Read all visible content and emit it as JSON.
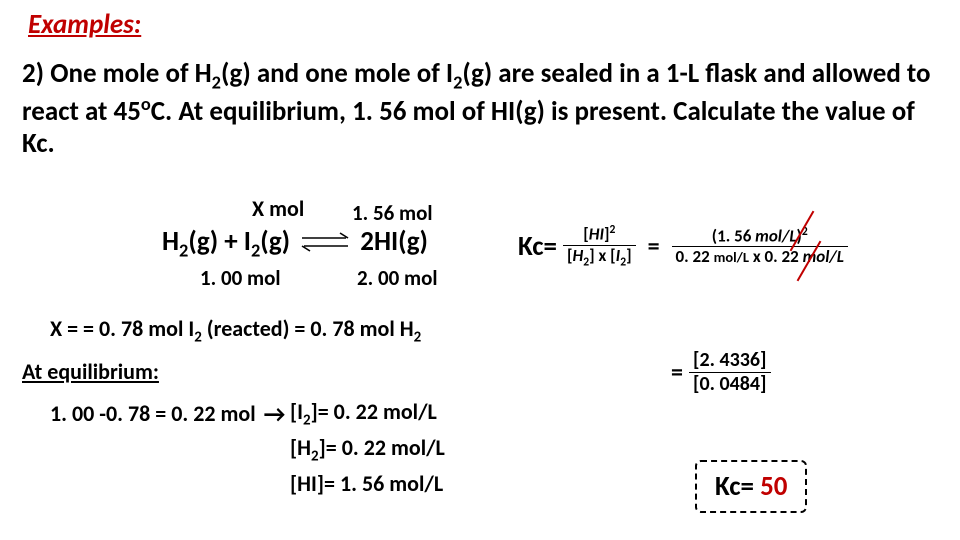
{
  "title": "Examples:",
  "problem_html": "2) One mole of H<span class='sub'>2</span>(g) and one mole of I<span class='sub'>2</span>(g) are sealed in a 1-L flask and allowed to react at 45<span class='sup'>o</span>C. At equilibrium, 1. 56 mol of HI(g) is present. Calculate the value of Kc.",
  "reaction": {
    "x_label": "X mol",
    "hi_initial": "1. 56 mol",
    "lhs_html": "H<span class='sub'>2</span>(g) + I<span class='sub'>2</span>(g)",
    "rhs_html": "2HI(g)",
    "h2_mol": "1. 00 mol",
    "hi_mol": "2. 00 mol"
  },
  "xline_html": "X = = 0. 78 mol I<span class='sub'>2</span> (reacted)  = 0. 78 mol H<span class='sub'>2</span>",
  "ateq_label": "At equilibrium:",
  "calcline_html": "1. 00 -0. 78 = 0. 22 mol <span class='rarrow'>→</span>",
  "conc_I2_html": "[I<span class='sub'>2</span>]= 0. 22 mol/L",
  "conc_H2_html": "[H<span class='sub'>2</span>]= 0. 22 mol/L",
  "conc_HI_html": "[HI]= 1. 56 mol/L",
  "kc": {
    "label": "Kc=",
    "frac1_num_html": "[<i>HI</i>]<span class='sup'>2</span>",
    "frac1_den_html": "[<i>H</i><span class='sub'>2</span>] x [<i>I</i><span class='sub'>2</span>]",
    "frac2_num_html": "(1. 56 <i>mol/L</i>)<span class='sup'>2</span>",
    "frac2_den_html": "0. 22 <span style='font-size:0.85em'>mol/L</span> x 0. 22 <i>mol/L</i>",
    "frac3_num_html": "[2. 4336]",
    "frac3_den_html": "[0. 0484]",
    "answer_label": "Kc=",
    "answer_value": "50"
  },
  "colors": {
    "accent": "#c00000",
    "text": "#000000",
    "bg": "#ffffff"
  }
}
